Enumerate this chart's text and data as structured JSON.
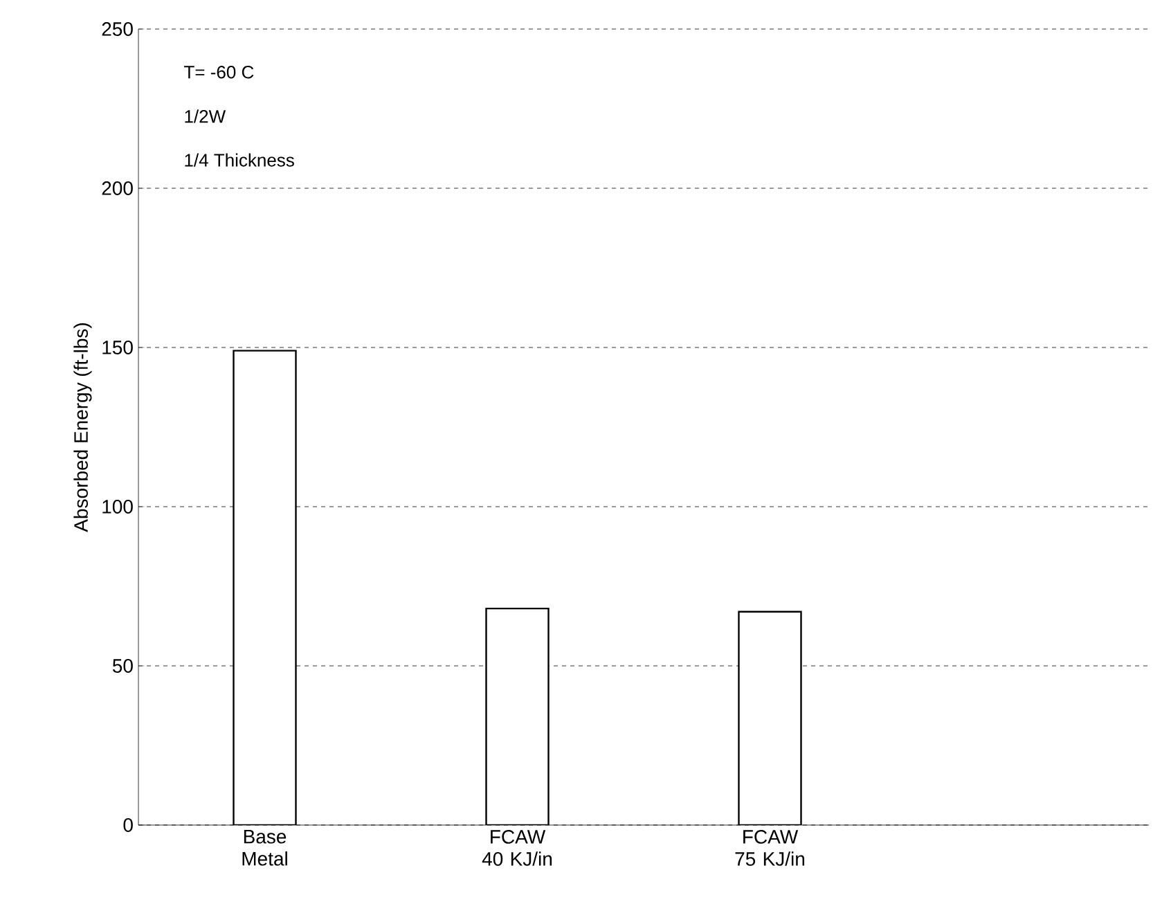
{
  "chart_data": {
    "type": "bar",
    "ylabel": "Absorbed Energy (ft-lbs)",
    "categories": [
      "Base Metal",
      "FCAW 40 KJ/in",
      "FCAW 75 KJ/in",
      null
    ],
    "values": [
      149,
      68,
      67,
      null
    ],
    "color": "#ffffff",
    "ylim": [
      0,
      250
    ],
    "yticks": [
      0,
      50,
      100,
      150,
      200,
      250
    ],
    "grid": "y",
    "annotations": [
      "T= -60 C",
      "1/2W",
      "1/4 Thickness"
    ]
  }
}
